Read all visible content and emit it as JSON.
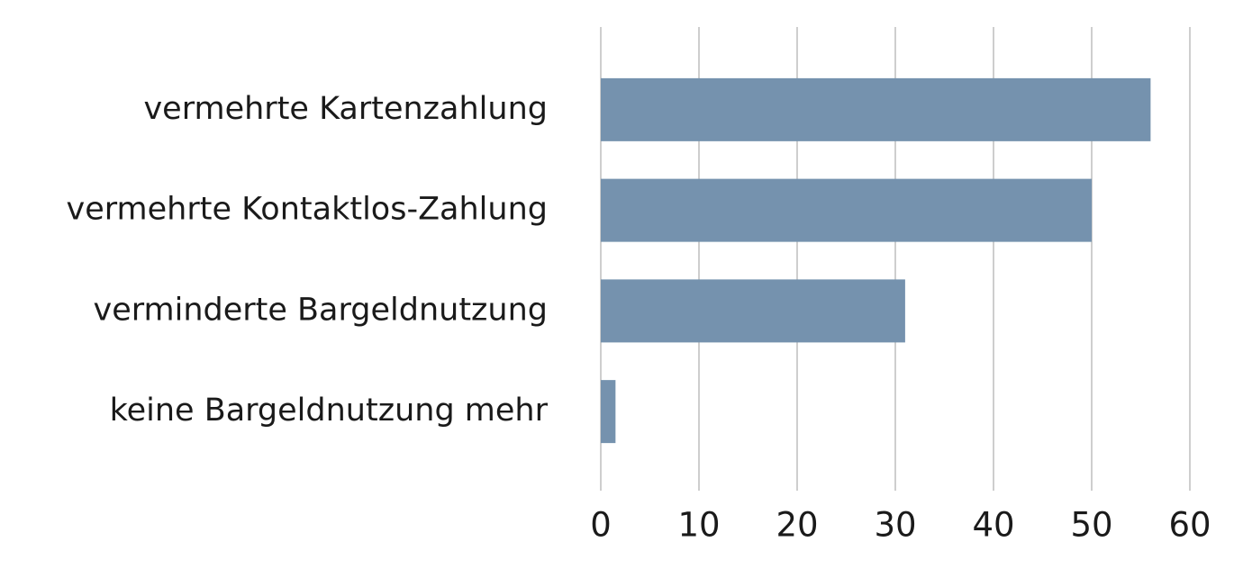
{
  "chart_data": {
    "type": "bar",
    "orientation": "horizontal",
    "categories": [
      "vermehrte Kartenzahlung",
      "vermehrte Kontaktlos-Zahlung",
      "verminderte Bargeldnutzung",
      "keine Bargeldnutzung mehr"
    ],
    "values": [
      56,
      50,
      31,
      1.5
    ],
    "color": "#7592ae",
    "xlim": [
      0,
      60
    ],
    "xticks": [
      0,
      10,
      20,
      30,
      40,
      50,
      60
    ],
    "grid": true
  }
}
